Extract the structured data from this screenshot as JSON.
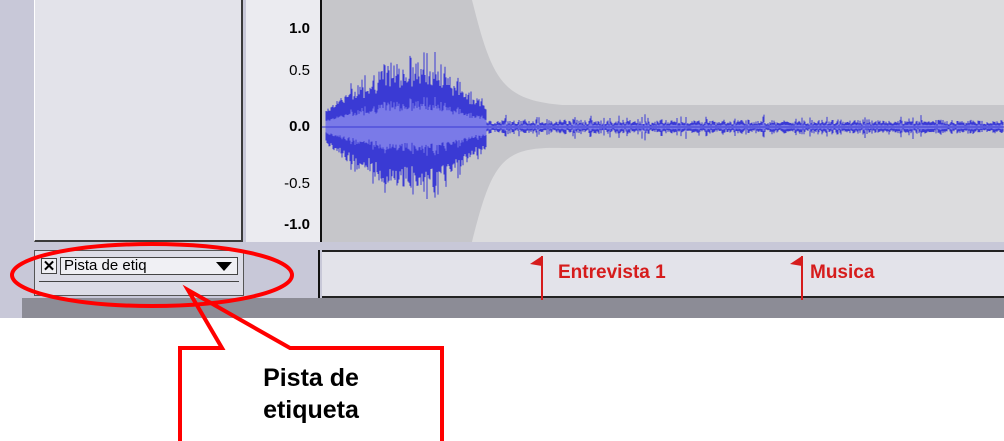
{
  "ruler": {
    "labels": [
      "1.0",
      "0.5",
      "0.0",
      "-0.5",
      "-1.0"
    ]
  },
  "label_track": {
    "name": "Pista de etiq",
    "close_symbol": "✕",
    "labels": [
      {
        "text": "Entrevista 1"
      },
      {
        "text": "Musica"
      }
    ]
  },
  "callout": {
    "line1": "Pista de",
    "line2": "etiqueta"
  },
  "colors": {
    "waveform": "#3a3ad4",
    "waveform_rms": "#7a7ae8",
    "label": "#d61c1c",
    "highlight": "#ff0000"
  }
}
